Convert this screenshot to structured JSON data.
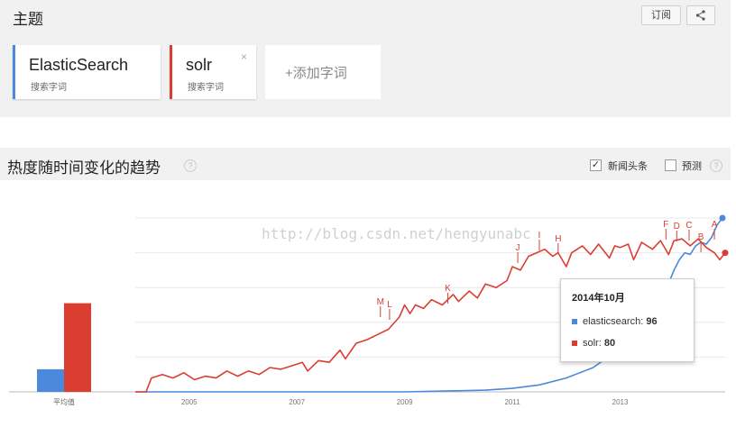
{
  "topics": {
    "title": "主题",
    "subscribe_label": "订阅",
    "share_icon": "share-icon",
    "cards": [
      {
        "term": "ElasticSearch",
        "subtitle": "搜索字词",
        "color": "#4a89dc"
      },
      {
        "term": "solr",
        "subtitle": "搜索字词",
        "color": "#db3e31"
      }
    ],
    "add_label": "+添加字词"
  },
  "trends": {
    "title": "热度随时间变化的趋势",
    "news_headlines_label": "新闻头条",
    "news_headlines_checked": true,
    "forecast_label": "预测",
    "forecast_checked": false
  },
  "watermark": "http://blog.csdn.net/hengyunabc",
  "tooltip": {
    "date": "2014年10月",
    "rows": [
      {
        "label": "elasticsearch:",
        "value": "96",
        "color": "#4a89dc"
      },
      {
        "label": "solr:",
        "value": "80",
        "color": "#db3e31"
      }
    ]
  },
  "chart_data": {
    "type": "line",
    "average_label": "平均值",
    "average_bars": [
      {
        "series": "elasticsearch",
        "value": 13,
        "color": "#4a89dc"
      },
      {
        "series": "solr",
        "value": 51,
        "color": "#db3e31"
      }
    ],
    "x_ticks": [
      "2005",
      "2007",
      "2009",
      "2011",
      "2013"
    ],
    "xlim": [
      2004.0,
      2014.95
    ],
    "ylim": [
      0,
      100
    ],
    "series": [
      {
        "name": "elasticsearch",
        "color": "#4a89dc",
        "points": [
          [
            2004.0,
            0
          ],
          [
            2009.0,
            0
          ],
          [
            2010.5,
            1
          ],
          [
            2011.0,
            2
          ],
          [
            2011.5,
            4
          ],
          [
            2012.0,
            8
          ],
          [
            2012.5,
            14
          ],
          [
            2013.0,
            25
          ],
          [
            2013.5,
            42
          ],
          [
            2013.8,
            55
          ],
          [
            2014.0,
            70
          ],
          [
            2014.1,
            76
          ],
          [
            2014.2,
            80
          ],
          [
            2014.3,
            79
          ],
          [
            2014.4,
            84
          ],
          [
            2014.5,
            86
          ],
          [
            2014.6,
            85
          ],
          [
            2014.7,
            89
          ],
          [
            2014.8,
            96
          ],
          [
            2014.9,
            100
          ]
        ]
      },
      {
        "name": "solr",
        "color": "#db3e31",
        "points": [
          [
            2004.0,
            0
          ],
          [
            2004.2,
            0
          ],
          [
            2004.3,
            8
          ],
          [
            2004.5,
            10
          ],
          [
            2004.7,
            8
          ],
          [
            2004.9,
            11
          ],
          [
            2005.1,
            7
          ],
          [
            2005.3,
            9
          ],
          [
            2005.5,
            8
          ],
          [
            2005.7,
            12
          ],
          [
            2005.9,
            9
          ],
          [
            2006.1,
            12
          ],
          [
            2006.3,
            10
          ],
          [
            2006.5,
            14
          ],
          [
            2006.7,
            13
          ],
          [
            2006.9,
            15
          ],
          [
            2007.1,
            17
          ],
          [
            2007.2,
            12
          ],
          [
            2007.4,
            18
          ],
          [
            2007.6,
            17
          ],
          [
            2007.8,
            24
          ],
          [
            2007.9,
            19
          ],
          [
            2008.1,
            28
          ],
          [
            2008.3,
            30
          ],
          [
            2008.5,
            33
          ],
          [
            2008.7,
            36
          ],
          [
            2008.9,
            43
          ],
          [
            2009.0,
            50
          ],
          [
            2009.1,
            45
          ],
          [
            2009.2,
            50
          ],
          [
            2009.35,
            48
          ],
          [
            2009.5,
            53
          ],
          [
            2009.7,
            50
          ],
          [
            2009.9,
            56
          ],
          [
            2010.0,
            52
          ],
          [
            2010.2,
            58
          ],
          [
            2010.35,
            54
          ],
          [
            2010.5,
            62
          ],
          [
            2010.7,
            60
          ],
          [
            2010.9,
            64
          ],
          [
            2011.0,
            72
          ],
          [
            2011.15,
            70
          ],
          [
            2011.3,
            78
          ],
          [
            2011.45,
            80
          ],
          [
            2011.6,
            82
          ],
          [
            2011.75,
            78
          ],
          [
            2011.85,
            80
          ],
          [
            2012.0,
            72
          ],
          [
            2012.1,
            80
          ],
          [
            2012.3,
            84
          ],
          [
            2012.45,
            79
          ],
          [
            2012.6,
            85
          ],
          [
            2012.8,
            77
          ],
          [
            2012.9,
            84
          ],
          [
            2013.0,
            83
          ],
          [
            2013.15,
            85
          ],
          [
            2013.25,
            76
          ],
          [
            2013.4,
            86
          ],
          [
            2013.6,
            82
          ],
          [
            2013.75,
            87
          ],
          [
            2013.9,
            79
          ],
          [
            2014.0,
            87
          ],
          [
            2014.15,
            88
          ],
          [
            2014.3,
            84
          ],
          [
            2014.45,
            88
          ],
          [
            2014.6,
            83
          ],
          [
            2014.75,
            80
          ],
          [
            2014.85,
            76
          ],
          [
            2014.95,
            80
          ]
        ]
      }
    ],
    "annotations": [
      "M",
      "L",
      "K",
      "J",
      "I",
      "H",
      "F",
      "D",
      "C",
      "B",
      "A"
    ]
  }
}
